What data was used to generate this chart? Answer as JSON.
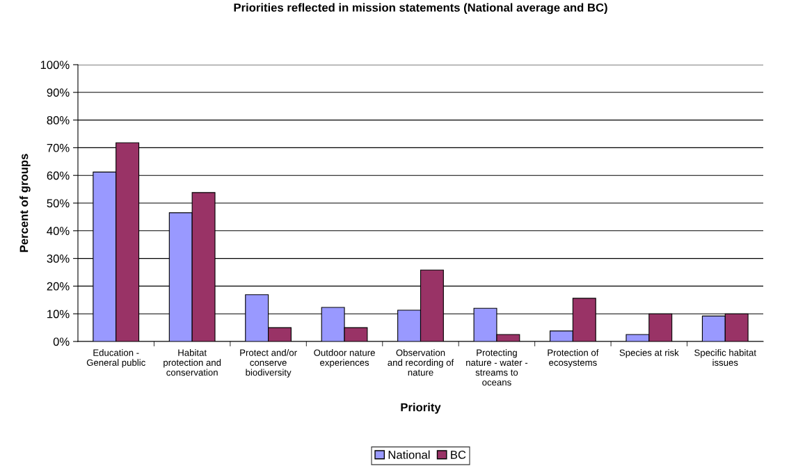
{
  "chart_data": {
    "type": "bar",
    "title": "Priorities reflected in mission statements (National average and BC)",
    "xlabel": "Priority",
    "ylabel": "Percent of groups",
    "categories": [
      "Education -\nGeneral public",
      "Habitat\nprotection and\nconservation",
      "Protect and/or\nconserve\nbiodiversity",
      "Outdoor nature\nexperiences",
      "Observation\nand recording of\nnature",
      "Protecting\nnature - water -\nstreams to\noceans",
      "Protection of\necosystems",
      "Species at risk",
      "Specific habitat\nissues"
    ],
    "series": [
      {
        "name": "National",
        "color": "#9999ff",
        "values": [
          61.2,
          46.5,
          16.9,
          12.3,
          11.3,
          12.0,
          3.8,
          2.5,
          9.2
        ]
      },
      {
        "name": "BC",
        "color": "#993366",
        "values": [
          71.8,
          53.8,
          5.0,
          5.0,
          25.8,
          2.5,
          15.6,
          10.0,
          10.0
        ]
      }
    ],
    "ylim": [
      0,
      100
    ],
    "yticks": [
      {
        "value": 0,
        "label": "0%"
      },
      {
        "value": 10,
        "label": "10%"
      },
      {
        "value": 20,
        "label": "20%"
      },
      {
        "value": 30,
        "label": "30%"
      },
      {
        "value": 40,
        "label": "40%"
      },
      {
        "value": 50,
        "label": "50%"
      },
      {
        "value": 60,
        "label": "60%"
      },
      {
        "value": 70,
        "label": "70%"
      },
      {
        "value": 80,
        "label": "80%"
      },
      {
        "value": 90,
        "label": "90%"
      },
      {
        "value": 100,
        "label": "100%"
      }
    ],
    "grid": "y",
    "legend": "bottom"
  }
}
